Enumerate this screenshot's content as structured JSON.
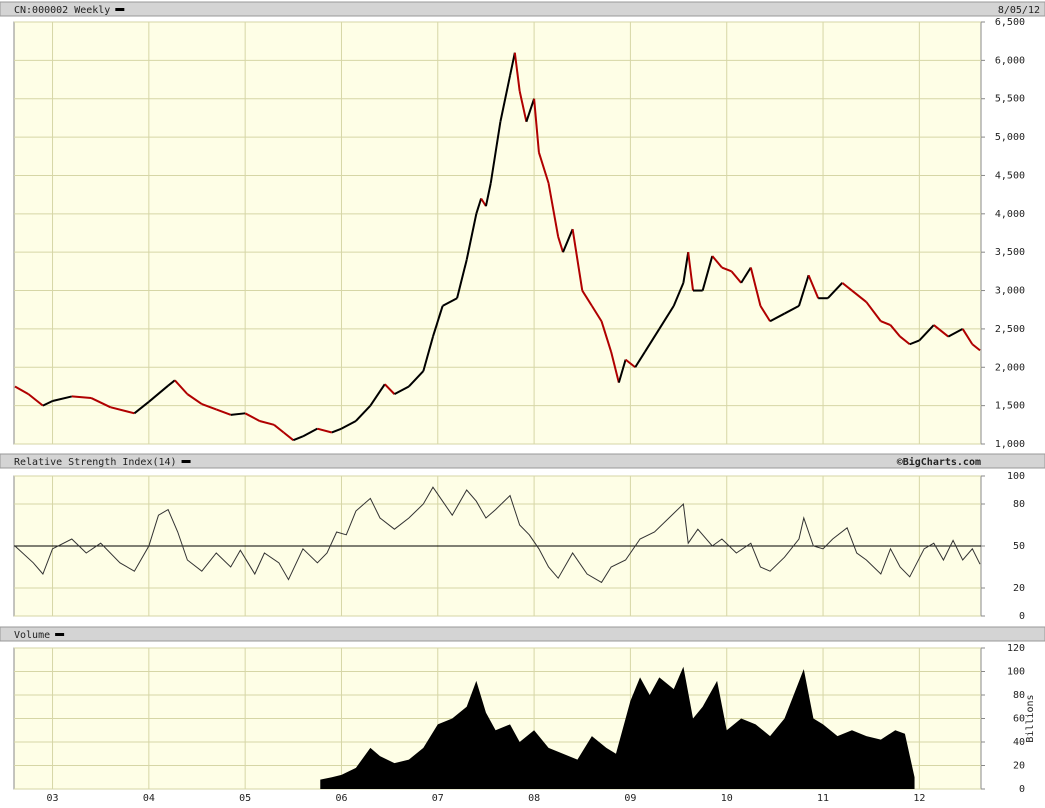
{
  "chart_data": [
    {
      "type": "price-line",
      "title": "CN:000002 Weekly",
      "date": "8/05/12",
      "x": [
        2002.61,
        2002.75,
        2002.9,
        2003.0,
        2003.2,
        2003.4,
        2003.6,
        2003.85,
        2004.0,
        2004.2,
        2004.27,
        2004.4,
        2004.55,
        2004.7,
        2004.85,
        2005.0,
        2005.15,
        2005.3,
        2005.4,
        2005.5,
        2005.6,
        2005.75,
        2005.9,
        2006.0,
        2006.15,
        2006.3,
        2006.45,
        2006.55,
        2006.7,
        2006.85,
        2006.95,
        2007.05,
        2007.2,
        2007.3,
        2007.4,
        2007.45,
        2007.5,
        2007.55,
        2007.65,
        2007.75,
        2007.8,
        2007.85,
        2007.92,
        2008.0,
        2008.05,
        2008.15,
        2008.25,
        2008.3,
        2008.4,
        2008.5,
        2008.6,
        2008.7,
        2008.8,
        2008.88,
        2008.95,
        2009.05,
        2009.15,
        2009.3,
        2009.45,
        2009.55,
        2009.6,
        2009.65,
        2009.75,
        2009.85,
        2009.95,
        2010.05,
        2010.15,
        2010.25,
        2010.35,
        2010.45,
        2010.6,
        2010.75,
        2010.85,
        2010.95,
        2011.05,
        2011.2,
        2011.3,
        2011.45,
        2011.6,
        2011.7,
        2011.8,
        2011.9,
        2012.0,
        2012.15,
        2012.3,
        2012.45,
        2012.55,
        2012.63
      ],
      "values": [
        1750,
        1650,
        1500,
        1560,
        1620,
        1600,
        1480,
        1400,
        1550,
        1760,
        1830,
        1650,
        1520,
        1450,
        1380,
        1400,
        1300,
        1250,
        1150,
        1050,
        1100,
        1200,
        1150,
        1200,
        1300,
        1500,
        1780,
        1650,
        1750,
        1950,
        2400,
        2800,
        2900,
        3400,
        4000,
        4200,
        4100,
        4400,
        5200,
        5800,
        6100,
        5600,
        5200,
        5500,
        4800,
        4400,
        3700,
        3500,
        3800,
        3000,
        2800,
        2600,
        2200,
        1800,
        2100,
        2000,
        2200,
        2500,
        2800,
        3100,
        3500,
        3000,
        3000,
        3450,
        3300,
        3250,
        3100,
        3300,
        2800,
        2600,
        2700,
        2800,
        3200,
        2900,
        2900,
        3100,
        3000,
        2850,
        2600,
        2550,
        2400,
        2300,
        2350,
        2550,
        2400,
        2500,
        2300,
        2220
      ],
      "up_color": "#000000",
      "down_color": "#b00000",
      "xlim": [
        2002.6,
        2012.64
      ],
      "xticks": [
        {
          "value": 2003,
          "label": "03"
        },
        {
          "value": 2004,
          "label": "04"
        },
        {
          "value": 2005,
          "label": "05"
        },
        {
          "value": 2006,
          "label": "06"
        },
        {
          "value": 2007,
          "label": "07"
        },
        {
          "value": 2008,
          "label": "08"
        },
        {
          "value": 2009,
          "label": "09"
        },
        {
          "value": 2010,
          "label": "10"
        },
        {
          "value": 2011,
          "label": "11"
        },
        {
          "value": 2012,
          "label": "12"
        }
      ],
      "ylim": [
        1000,
        6500
      ],
      "yticks": [
        {
          "value": 1000,
          "label": "1,000"
        },
        {
          "value": 1500,
          "label": "1,500"
        },
        {
          "value": 2000,
          "label": "2,000"
        },
        {
          "value": 2500,
          "label": "2,500"
        },
        {
          "value": 3000,
          "label": "3,000"
        },
        {
          "value": 3500,
          "label": "3,500"
        },
        {
          "value": 4000,
          "label": "4,000"
        },
        {
          "value": 4500,
          "label": "4,500"
        },
        {
          "value": 5000,
          "label": "5,000"
        },
        {
          "value": 5500,
          "label": "5,500"
        },
        {
          "value": 6000,
          "label": "6,000"
        },
        {
          "value": 6500,
          "label": "6,500"
        }
      ],
      "grid": true
    },
    {
      "type": "line",
      "title": "Relative Strength Index(14)",
      "credit": "©BigCharts.com",
      "x": [
        2002.61,
        2002.8,
        2002.9,
        2003.0,
        2003.2,
        2003.35,
        2003.5,
        2003.7,
        2003.85,
        2004.0,
        2004.1,
        2004.2,
        2004.3,
        2004.4,
        2004.55,
        2004.7,
        2004.85,
        2004.95,
        2005.1,
        2005.2,
        2005.35,
        2005.45,
        2005.6,
        2005.75,
        2005.85,
        2005.95,
        2006.05,
        2006.15,
        2006.3,
        2006.4,
        2006.55,
        2006.7,
        2006.85,
        2006.95,
        2007.05,
        2007.15,
        2007.3,
        2007.4,
        2007.5,
        2007.6,
        2007.75,
        2007.85,
        2007.95,
        2008.05,
        2008.15,
        2008.25,
        2008.4,
        2008.55,
        2008.7,
        2008.8,
        2008.95,
        2009.1,
        2009.25,
        2009.4,
        2009.55,
        2009.6,
        2009.7,
        2009.85,
        2009.95,
        2010.1,
        2010.25,
        2010.35,
        2010.45,
        2010.6,
        2010.75,
        2010.8,
        2010.9,
        2011.0,
        2011.1,
        2011.25,
        2011.35,
        2011.45,
        2011.6,
        2011.7,
        2011.8,
        2011.9,
        2012.05,
        2012.15,
        2012.25,
        2012.35,
        2012.45,
        2012.55,
        2012.63
      ],
      "values": [
        50,
        38,
        30,
        48,
        55,
        45,
        52,
        38,
        32,
        50,
        72,
        76,
        60,
        40,
        32,
        45,
        35,
        47,
        30,
        45,
        38,
        26,
        48,
        38,
        45,
        60,
        58,
        75,
        84,
        70,
        62,
        70,
        80,
        92,
        82,
        72,
        90,
        82,
        70,
        76,
        86,
        65,
        58,
        48,
        35,
        27,
        45,
        30,
        24,
        35,
        40,
        55,
        60,
        70,
        80,
        52,
        62,
        50,
        55,
        45,
        52,
        35,
        32,
        42,
        55,
        70,
        50,
        48,
        55,
        63,
        45,
        40,
        30,
        48,
        35,
        28,
        48,
        52,
        40,
        54,
        40,
        48,
        37
      ],
      "color": "#333333",
      "reference_line": 50,
      "reference_color": "#000000",
      "xlim": [
        2002.6,
        2012.64
      ],
      "xticks": [
        2003,
        2004,
        2005,
        2006,
        2007,
        2008,
        2009,
        2010,
        2011,
        2012
      ],
      "ylim": [
        0,
        100
      ],
      "yticks": [
        0,
        20,
        50,
        80,
        100
      ],
      "grid": true
    },
    {
      "type": "area",
      "title": "Volume",
      "y_label": "Billions",
      "x": [
        2005.78,
        2005.9,
        2006.0,
        2006.15,
        2006.3,
        2006.4,
        2006.55,
        2006.7,
        2006.85,
        2007.0,
        2007.15,
        2007.3,
        2007.4,
        2007.5,
        2007.6,
        2007.75,
        2007.85,
        2008.0,
        2008.15,
        2008.3,
        2008.45,
        2008.6,
        2008.75,
        2008.85,
        2009.0,
        2009.1,
        2009.2,
        2009.3,
        2009.45,
        2009.55,
        2009.65,
        2009.75,
        2009.9,
        2010.0,
        2010.15,
        2010.3,
        2010.45,
        2010.6,
        2010.8,
        2010.9,
        2011.0,
        2011.15,
        2011.3,
        2011.45,
        2011.6,
        2011.75,
        2011.85,
        2011.95
      ],
      "values": [
        8,
        10,
        12,
        18,
        35,
        28,
        22,
        25,
        35,
        55,
        60,
        70,
        92,
        65,
        50,
        55,
        40,
        50,
        35,
        30,
        25,
        45,
        35,
        30,
        75,
        95,
        80,
        95,
        85,
        104,
        60,
        70,
        92,
        50,
        60,
        55,
        45,
        60,
        102,
        60,
        55,
        45,
        50,
        45,
        42,
        50,
        47,
        10
      ],
      "color": "#000000",
      "xlim": [
        2002.6,
        2012.64
      ],
      "xticks": [
        {
          "value": 2003,
          "label": "03"
        },
        {
          "value": 2004,
          "label": "04"
        },
        {
          "value": 2005,
          "label": "05"
        },
        {
          "value": 2006,
          "label": "06"
        },
        {
          "value": 2007,
          "label": "07"
        },
        {
          "value": 2008,
          "label": "08"
        },
        {
          "value": 2009,
          "label": "09"
        },
        {
          "value": 2010,
          "label": "10"
        },
        {
          "value": 2011,
          "label": "11"
        },
        {
          "value": 2012,
          "label": "12"
        }
      ],
      "ylim": [
        0,
        120
      ],
      "yticks": [
        0,
        20,
        40,
        60,
        80,
        100,
        120
      ],
      "grid": true
    }
  ]
}
